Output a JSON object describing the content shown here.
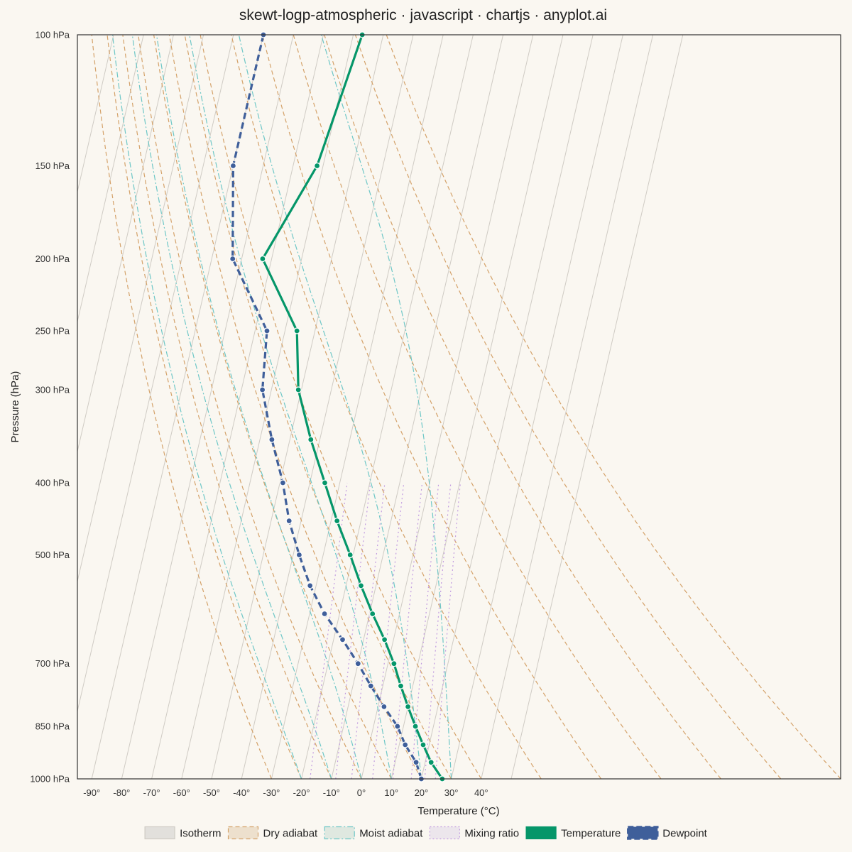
{
  "chart_data": {
    "type": "line",
    "title": "skewt-logp-atmospheric · javascript · chartjs · anyplot.ai",
    "xlabel": "Temperature (°C)",
    "ylabel": "Pressure (hPa)",
    "y_scale": "log",
    "ylim": [
      1000,
      100
    ],
    "xlim": [
      -95,
      160
    ],
    "grid": false,
    "legend_position": "bottom",
    "y_ticks": [
      {
        "value": 100,
        "label": "100 hPa"
      },
      {
        "value": 150,
        "label": "150 hPa"
      },
      {
        "value": 200,
        "label": "200 hPa"
      },
      {
        "value": 250,
        "label": "250 hPa"
      },
      {
        "value": 300,
        "label": "300 hPa"
      },
      {
        "value": 400,
        "label": "400 hPa"
      },
      {
        "value": 500,
        "label": "500 hPa"
      },
      {
        "value": 700,
        "label": "700 hPa"
      },
      {
        "value": 850,
        "label": "850 hPa"
      },
      {
        "value": 1000,
        "label": "1000 hPa"
      }
    ],
    "x_ticks": [
      {
        "value": -90,
        "label": "-90°"
      },
      {
        "value": -80,
        "label": "-80°"
      },
      {
        "value": -70,
        "label": "-70°"
      },
      {
        "value": -60,
        "label": "-60°"
      },
      {
        "value": -50,
        "label": "-50°"
      },
      {
        "value": -40,
        "label": "-40°"
      },
      {
        "value": -30,
        "label": "-30°"
      },
      {
        "value": -20,
        "label": "-20°"
      },
      {
        "value": -10,
        "label": "-10°"
      },
      {
        "value": 0,
        "label": "0°"
      },
      {
        "value": 10,
        "label": "10°"
      },
      {
        "value": 20,
        "label": "20°"
      },
      {
        "value": 30,
        "label": "30°"
      },
      {
        "value": 40,
        "label": "40°"
      }
    ],
    "legend": [
      {
        "label": "Isotherm",
        "style": "isotherm"
      },
      {
        "label": "Dry adiabat",
        "style": "dry"
      },
      {
        "label": "Moist adiabat",
        "style": "moist"
      },
      {
        "label": "Mixing ratio",
        "style": "mixing"
      },
      {
        "label": "Temperature",
        "style": "temperature"
      },
      {
        "label": "Dewpoint",
        "style": "dewpoint"
      }
    ],
    "colors": {
      "background": "#faf7f1",
      "isotherm": "#cfcbc4",
      "dry_adiabat": "#d4a26a",
      "moist_adiabat": "#6ec7c7",
      "mixing_ratio": "#c19be0",
      "temperature": "#059669",
      "dewpoint": "#3f5f9a"
    },
    "isotherm_temps": [
      -140,
      -130,
      -120,
      -110,
      -100,
      -90,
      -80,
      -70,
      -60,
      -50,
      -40,
      -30,
      -20,
      -10,
      0,
      10,
      20,
      30,
      40,
      50
    ],
    "dry_adiabat_thetas": [
      -30,
      -20,
      -10,
      0,
      10,
      20,
      30,
      40,
      60,
      80,
      100,
      120,
      140,
      160
    ],
    "moist_adiabat_start_temps": [
      -20,
      -10,
      0,
      10,
      20,
      30
    ],
    "mixing_ratio_gkg": [
      1,
      2,
      3,
      5,
      8,
      12,
      16,
      20
    ],
    "mixing_ratio_top_hpa": 400,
    "series": [
      {
        "name": "Temperature",
        "points": [
          {
            "p": 1000,
            "t": 27
          },
          {
            "p": 950,
            "t": 22
          },
          {
            "p": 900,
            "t": 18
          },
          {
            "p": 850,
            "t": 14
          },
          {
            "p": 800,
            "t": 10
          },
          {
            "p": 750,
            "t": 6
          },
          {
            "p": 700,
            "t": 2
          },
          {
            "p": 650,
            "t": -3
          },
          {
            "p": 600,
            "t": -9
          },
          {
            "p": 550,
            "t": -15
          },
          {
            "p": 500,
            "t": -21
          },
          {
            "p": 450,
            "t": -28
          },
          {
            "p": 400,
            "t": -35
          },
          {
            "p": 350,
            "t": -43
          },
          {
            "p": 300,
            "t": -51
          },
          {
            "p": 250,
            "t": -56
          },
          {
            "p": 200,
            "t": -73
          },
          {
            "p": 150,
            "t": -62
          },
          {
            "p": 100,
            "t": -57
          }
        ]
      },
      {
        "name": "Dewpoint",
        "points": [
          {
            "p": 1000,
            "t": 20
          },
          {
            "p": 950,
            "t": 17
          },
          {
            "p": 900,
            "t": 12
          },
          {
            "p": 850,
            "t": 8
          },
          {
            "p": 800,
            "t": 2
          },
          {
            "p": 750,
            "t": -4
          },
          {
            "p": 700,
            "t": -10
          },
          {
            "p": 650,
            "t": -17
          },
          {
            "p": 600,
            "t": -25
          },
          {
            "p": 550,
            "t": -32
          },
          {
            "p": 500,
            "t": -38
          },
          {
            "p": 450,
            "t": -44
          },
          {
            "p": 400,
            "t": -49
          },
          {
            "p": 350,
            "t": -56
          },
          {
            "p": 300,
            "t": -63
          },
          {
            "p": 250,
            "t": -66
          },
          {
            "p": 200,
            "t": -83
          },
          {
            "p": 150,
            "t": -90
          },
          {
            "p": 100,
            "t": -90
          }
        ]
      }
    ]
  }
}
